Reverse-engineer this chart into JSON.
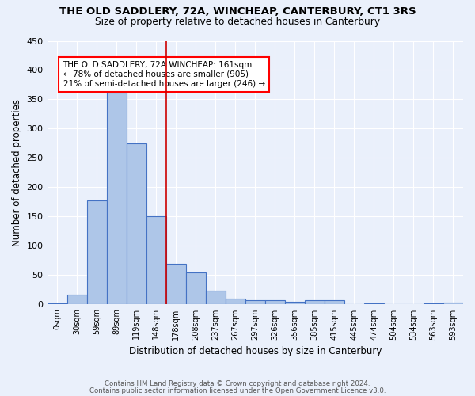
{
  "title": "THE OLD SADDLERY, 72A, WINCHEAP, CANTERBURY, CT1 3RS",
  "subtitle": "Size of property relative to detached houses in Canterbury",
  "xlabel": "Distribution of detached houses by size in Canterbury",
  "ylabel": "Number of detached properties",
  "bar_labels": [
    "0sqm",
    "30sqm",
    "59sqm",
    "89sqm",
    "119sqm",
    "148sqm",
    "178sqm",
    "208sqm",
    "237sqm",
    "267sqm",
    "297sqm",
    "326sqm",
    "356sqm",
    "385sqm",
    "415sqm",
    "445sqm",
    "474sqm",
    "504sqm",
    "534sqm",
    "563sqm",
    "593sqm"
  ],
  "bar_values": [
    2,
    17,
    178,
    362,
    275,
    151,
    70,
    54,
    24,
    10,
    7,
    7,
    5,
    7,
    8,
    0,
    2,
    0,
    0,
    2,
    3
  ],
  "bar_color": "#aec6e8",
  "bar_edge_color": "#4472c4",
  "red_line_x": 5.5,
  "annotation_text": "THE OLD SADDLERY, 72A WINCHEAP: 161sqm\n← 78% of detached houses are smaller (905)\n21% of semi-detached houses are larger (246) →",
  "footer1": "Contains HM Land Registry data © Crown copyright and database right 2024.",
  "footer2": "Contains public sector information licensed under the Open Government Licence v3.0.",
  "bg_color": "#eaf0fb",
  "plot_bg_color": "#eaf0fb",
  "grid_color": "#ffffff",
  "ylim": [
    0,
    450
  ],
  "yticks": [
    0,
    50,
    100,
    150,
    200,
    250,
    300,
    350,
    400,
    450
  ]
}
